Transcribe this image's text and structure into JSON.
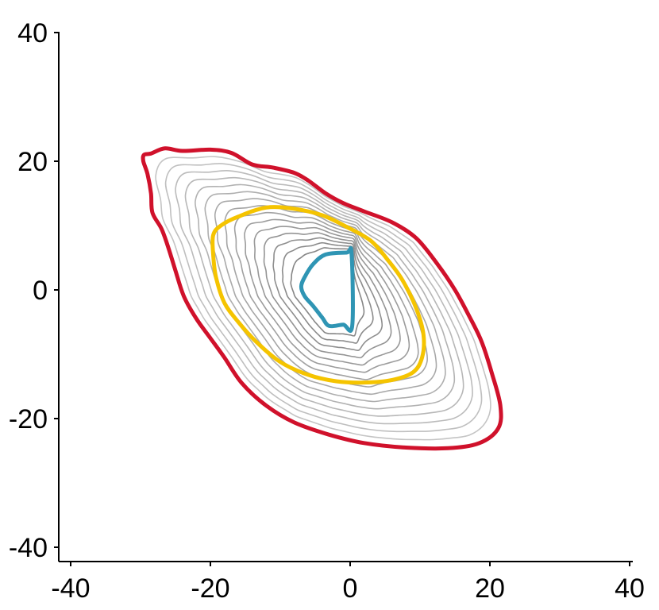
{
  "chart_data": {
    "type": "contour",
    "title": "",
    "xlabel": "",
    "ylabel": "",
    "xlim": [
      -40,
      40
    ],
    "ylim": [
      -40,
      40
    ],
    "xticks": [
      -40,
      -20,
      0,
      20,
      40
    ],
    "yticks": [
      -40,
      -20,
      0,
      20,
      40
    ],
    "xtick_labels": [
      "-40",
      "-20",
      "0",
      "20",
      "40"
    ],
    "ytick_labels": [
      "-40",
      "-20",
      "0",
      "20",
      "40"
    ],
    "grid": false,
    "legend": "none",
    "colors": {
      "outer": "#d0112b",
      "middle": "#f5c400",
      "inner": "#2f95b4",
      "intermediate": "#9a9a9a"
    },
    "highlighted_contours": [
      {
        "color_key": "outer",
        "points": [
          [
            -29.5,
            21
          ],
          [
            -28.5,
            21.2
          ],
          [
            -26.5,
            22
          ],
          [
            -24,
            21.6
          ],
          [
            -20,
            21.8
          ],
          [
            -17,
            21.3
          ],
          [
            -14,
            19.5
          ],
          [
            -11,
            19
          ],
          [
            -8,
            18.2
          ],
          [
            -6,
            17
          ],
          [
            -3.5,
            15
          ],
          [
            -1,
            13.5
          ],
          [
            2,
            12.2
          ],
          [
            6,
            10.5
          ],
          [
            9.5,
            8
          ],
          [
            12.5,
            4
          ],
          [
            15,
            0
          ],
          [
            17,
            -4
          ],
          [
            18.8,
            -8
          ],
          [
            20.3,
            -13
          ],
          [
            21.5,
            -18
          ],
          [
            21.2,
            -21.5
          ],
          [
            18.5,
            -23.8
          ],
          [
            14,
            -24.6
          ],
          [
            8,
            -24.5
          ],
          [
            2,
            -23.8
          ],
          [
            -3,
            -22.5
          ],
          [
            -8,
            -20.6
          ],
          [
            -12,
            -18
          ],
          [
            -15.5,
            -14.5
          ],
          [
            -18,
            -10.5
          ],
          [
            -20,
            -7.5
          ],
          [
            -22,
            -4.5
          ],
          [
            -23.8,
            -1
          ],
          [
            -25,
            3
          ],
          [
            -26,
            6.5
          ],
          [
            -27,
            9.5
          ],
          [
            -28.3,
            12
          ],
          [
            -28.5,
            15
          ],
          [
            -29,
            18
          ],
          [
            -29.6,
            20
          ]
        ]
      },
      {
        "color_key": "middle",
        "points": [
          [
            -19.6,
            8.5
          ],
          [
            -18.5,
            10
          ],
          [
            -16,
            11.4
          ],
          [
            -12,
            12.8
          ],
          [
            -8,
            12.6
          ],
          [
            -4,
            11.6
          ],
          [
            -0.5,
            9.8
          ],
          [
            3,
            7.6
          ],
          [
            5.5,
            4.5
          ],
          [
            7.5,
            1.5
          ],
          [
            9.5,
            -3
          ],
          [
            10.5,
            -7
          ],
          [
            10.3,
            -10.5
          ],
          [
            9,
            -12.8
          ],
          [
            6,
            -14
          ],
          [
            2,
            -14.4
          ],
          [
            -2,
            -14.2
          ],
          [
            -6,
            -13.2
          ],
          [
            -10,
            -11.2
          ],
          [
            -13.5,
            -8
          ],
          [
            -16,
            -5
          ],
          [
            -18,
            -2
          ],
          [
            -19.2,
            2
          ],
          [
            -19.6,
            5.5
          ]
        ]
      },
      {
        "color_key": "inner",
        "points": [
          [
            -5.3,
            4
          ],
          [
            -3.5,
            5.5
          ],
          [
            -0.5,
            5.8
          ],
          [
            0.2,
            5.6
          ],
          [
            0.3,
            -5.6
          ],
          [
            -1,
            -5.4
          ],
          [
            -3,
            -5.6
          ],
          [
            -4,
            -4.3
          ],
          [
            -5.3,
            -2.5
          ],
          [
            -6.5,
            -1
          ],
          [
            -7,
            0.5
          ],
          [
            -6.5,
            2
          ]
        ]
      }
    ]
  }
}
